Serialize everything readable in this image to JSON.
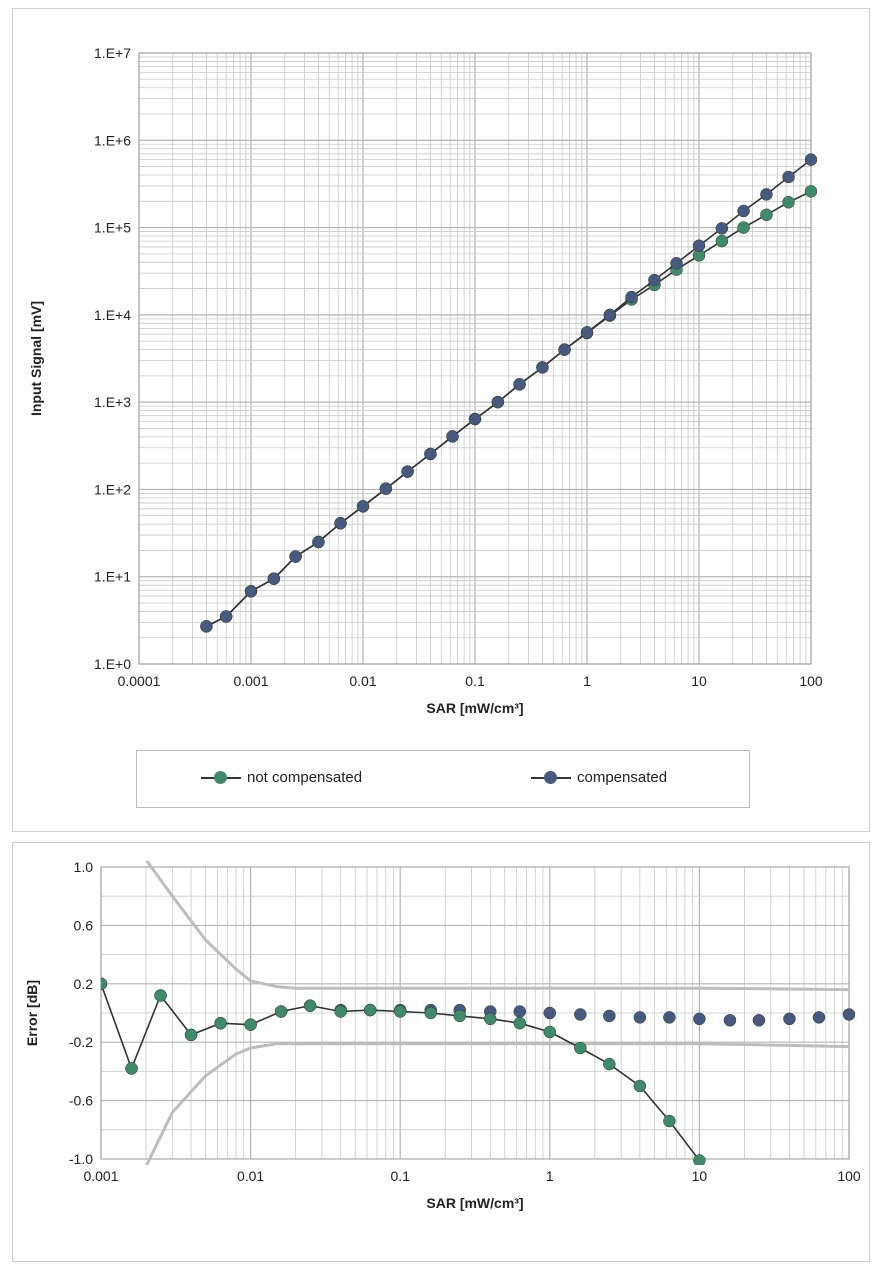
{
  "colors": {
    "not_compensated": "#3f8a6a",
    "compensated": "#47597f",
    "line": "#333333",
    "grid": "#c9c9c9",
    "limit": "#bdbdbd"
  },
  "chart_data": [
    {
      "type": "line",
      "x_scale": "log",
      "y_scale": "log",
      "xlabel": "SAR [mW/cm³]",
      "ylabel": "Input Signal  [mV]",
      "xlim": [
        0.0001,
        100
      ],
      "ylim": [
        1,
        10000000
      ],
      "x_tick_labels": [
        "0.0001",
        "0.001",
        "0.01",
        "0.1",
        "1",
        "10",
        "100"
      ],
      "y_tick_labels": [
        "1.E+0",
        "1.E+1",
        "1.E+2",
        "1.E+3",
        "1.E+4",
        "1.E+5",
        "1.E+6",
        "1.E+7"
      ],
      "grid": true,
      "legend_position": "bottom",
      "series": [
        {
          "name": "not compensated",
          "x": [
            0.0004,
            0.0006,
            0.001,
            0.0016,
            0.0025,
            0.004,
            0.0063,
            0.01,
            0.016,
            0.025,
            0.04,
            0.063,
            0.1,
            0.16,
            0.25,
            0.4,
            0.63,
            1,
            1.6,
            2.5,
            4,
            6.3,
            10,
            16,
            25,
            40,
            63,
            100
          ],
          "y": [
            2.7,
            3.5,
            6.8,
            9.5,
            17,
            25,
            41,
            64,
            102,
            160,
            255,
            405,
            640,
            1000,
            1600,
            2500,
            4000,
            6200,
            9800,
            15000,
            22000,
            33000,
            48000,
            70000,
            100000,
            140000,
            195000,
            260000
          ]
        },
        {
          "name": "compensated",
          "x": [
            0.0004,
            0.0006,
            0.001,
            0.0016,
            0.0025,
            0.004,
            0.0063,
            0.01,
            0.016,
            0.025,
            0.04,
            0.063,
            0.1,
            0.16,
            0.25,
            0.4,
            0.63,
            1,
            1.6,
            2.5,
            4,
            6.3,
            10,
            16,
            25,
            40,
            63,
            100
          ],
          "y": [
            2.7,
            3.5,
            6.8,
            9.5,
            17,
            25,
            41,
            64,
            102,
            160,
            255,
            405,
            640,
            1000,
            1600,
            2500,
            4000,
            6300,
            10000,
            16000,
            25000,
            39000,
            62000,
            98000,
            155000,
            240000,
            380000,
            600000
          ]
        }
      ]
    },
    {
      "type": "line",
      "x_scale": "log",
      "xlabel": "SAR [mW/cm³]",
      "ylabel": "Error [dB]",
      "xlim": [
        0.001,
        100
      ],
      "ylim": [
        -1.0,
        1.0
      ],
      "x_tick_labels": [
        "0.001",
        "0.01",
        "0.1",
        "1",
        "10",
        "100"
      ],
      "y_tick_labels": [
        "1.0",
        "0.6",
        "0.2",
        "-0.2",
        "-0.6",
        "-1.0"
      ],
      "grid": true,
      "series": [
        {
          "name": "not compensated",
          "x": [
            0.001,
            0.0016,
            0.0025,
            0.004,
            0.0063,
            0.01,
            0.016,
            0.025,
            0.04,
            0.063,
            0.1,
            0.16,
            0.25,
            0.4,
            0.63,
            1,
            1.6,
            2.5,
            4,
            6.3,
            10
          ],
          "y": [
            0.2,
            -0.38,
            0.12,
            -0.15,
            -0.07,
            -0.08,
            0.01,
            0.05,
            0.01,
            0.02,
            0.01,
            0.0,
            -0.02,
            -0.04,
            -0.07,
            -0.13,
            -0.24,
            -0.35,
            -0.5,
            -0.74,
            -1.01
          ]
        },
        {
          "name": "compensated",
          "x": [
            0.001,
            0.0016,
            0.0025,
            0.004,
            0.0063,
            0.01,
            0.016,
            0.025,
            0.04,
            0.063,
            0.1,
            0.16,
            0.25,
            0.4,
            0.63,
            1,
            1.6,
            2.5,
            4,
            6.3,
            10,
            16,
            25,
            40,
            63,
            100
          ],
          "y": [
            0.2,
            -0.38,
            0.12,
            -0.15,
            -0.07,
            -0.08,
            0.01,
            0.05,
            0.02,
            0.02,
            0.02,
            0.02,
            0.02,
            0.01,
            0.01,
            0.0,
            -0.01,
            -0.02,
            -0.03,
            -0.03,
            -0.04,
            -0.05,
            -0.05,
            -0.04,
            -0.03,
            -0.01
          ]
        },
        {
          "x": [
            0.002,
            0.003,
            0.005,
            0.008,
            0.01,
            0.015,
            0.02,
            0.05,
            0.1,
            1,
            10,
            100
          ],
          "y": [
            1.05,
            0.8,
            0.5,
            0.3,
            0.22,
            0.18,
            0.17,
            0.17,
            0.17,
            0.17,
            0.17,
            0.16
          ]
        },
        {
          "x": [
            0.002,
            0.003,
            0.005,
            0.008,
            0.01,
            0.015,
            0.02,
            0.05,
            0.1,
            1,
            10,
            100
          ],
          "y": [
            -1.05,
            -0.68,
            -0.43,
            -0.28,
            -0.24,
            -0.21,
            -0.21,
            -0.21,
            -0.21,
            -0.21,
            -0.21,
            -0.23
          ]
        }
      ]
    }
  ]
}
